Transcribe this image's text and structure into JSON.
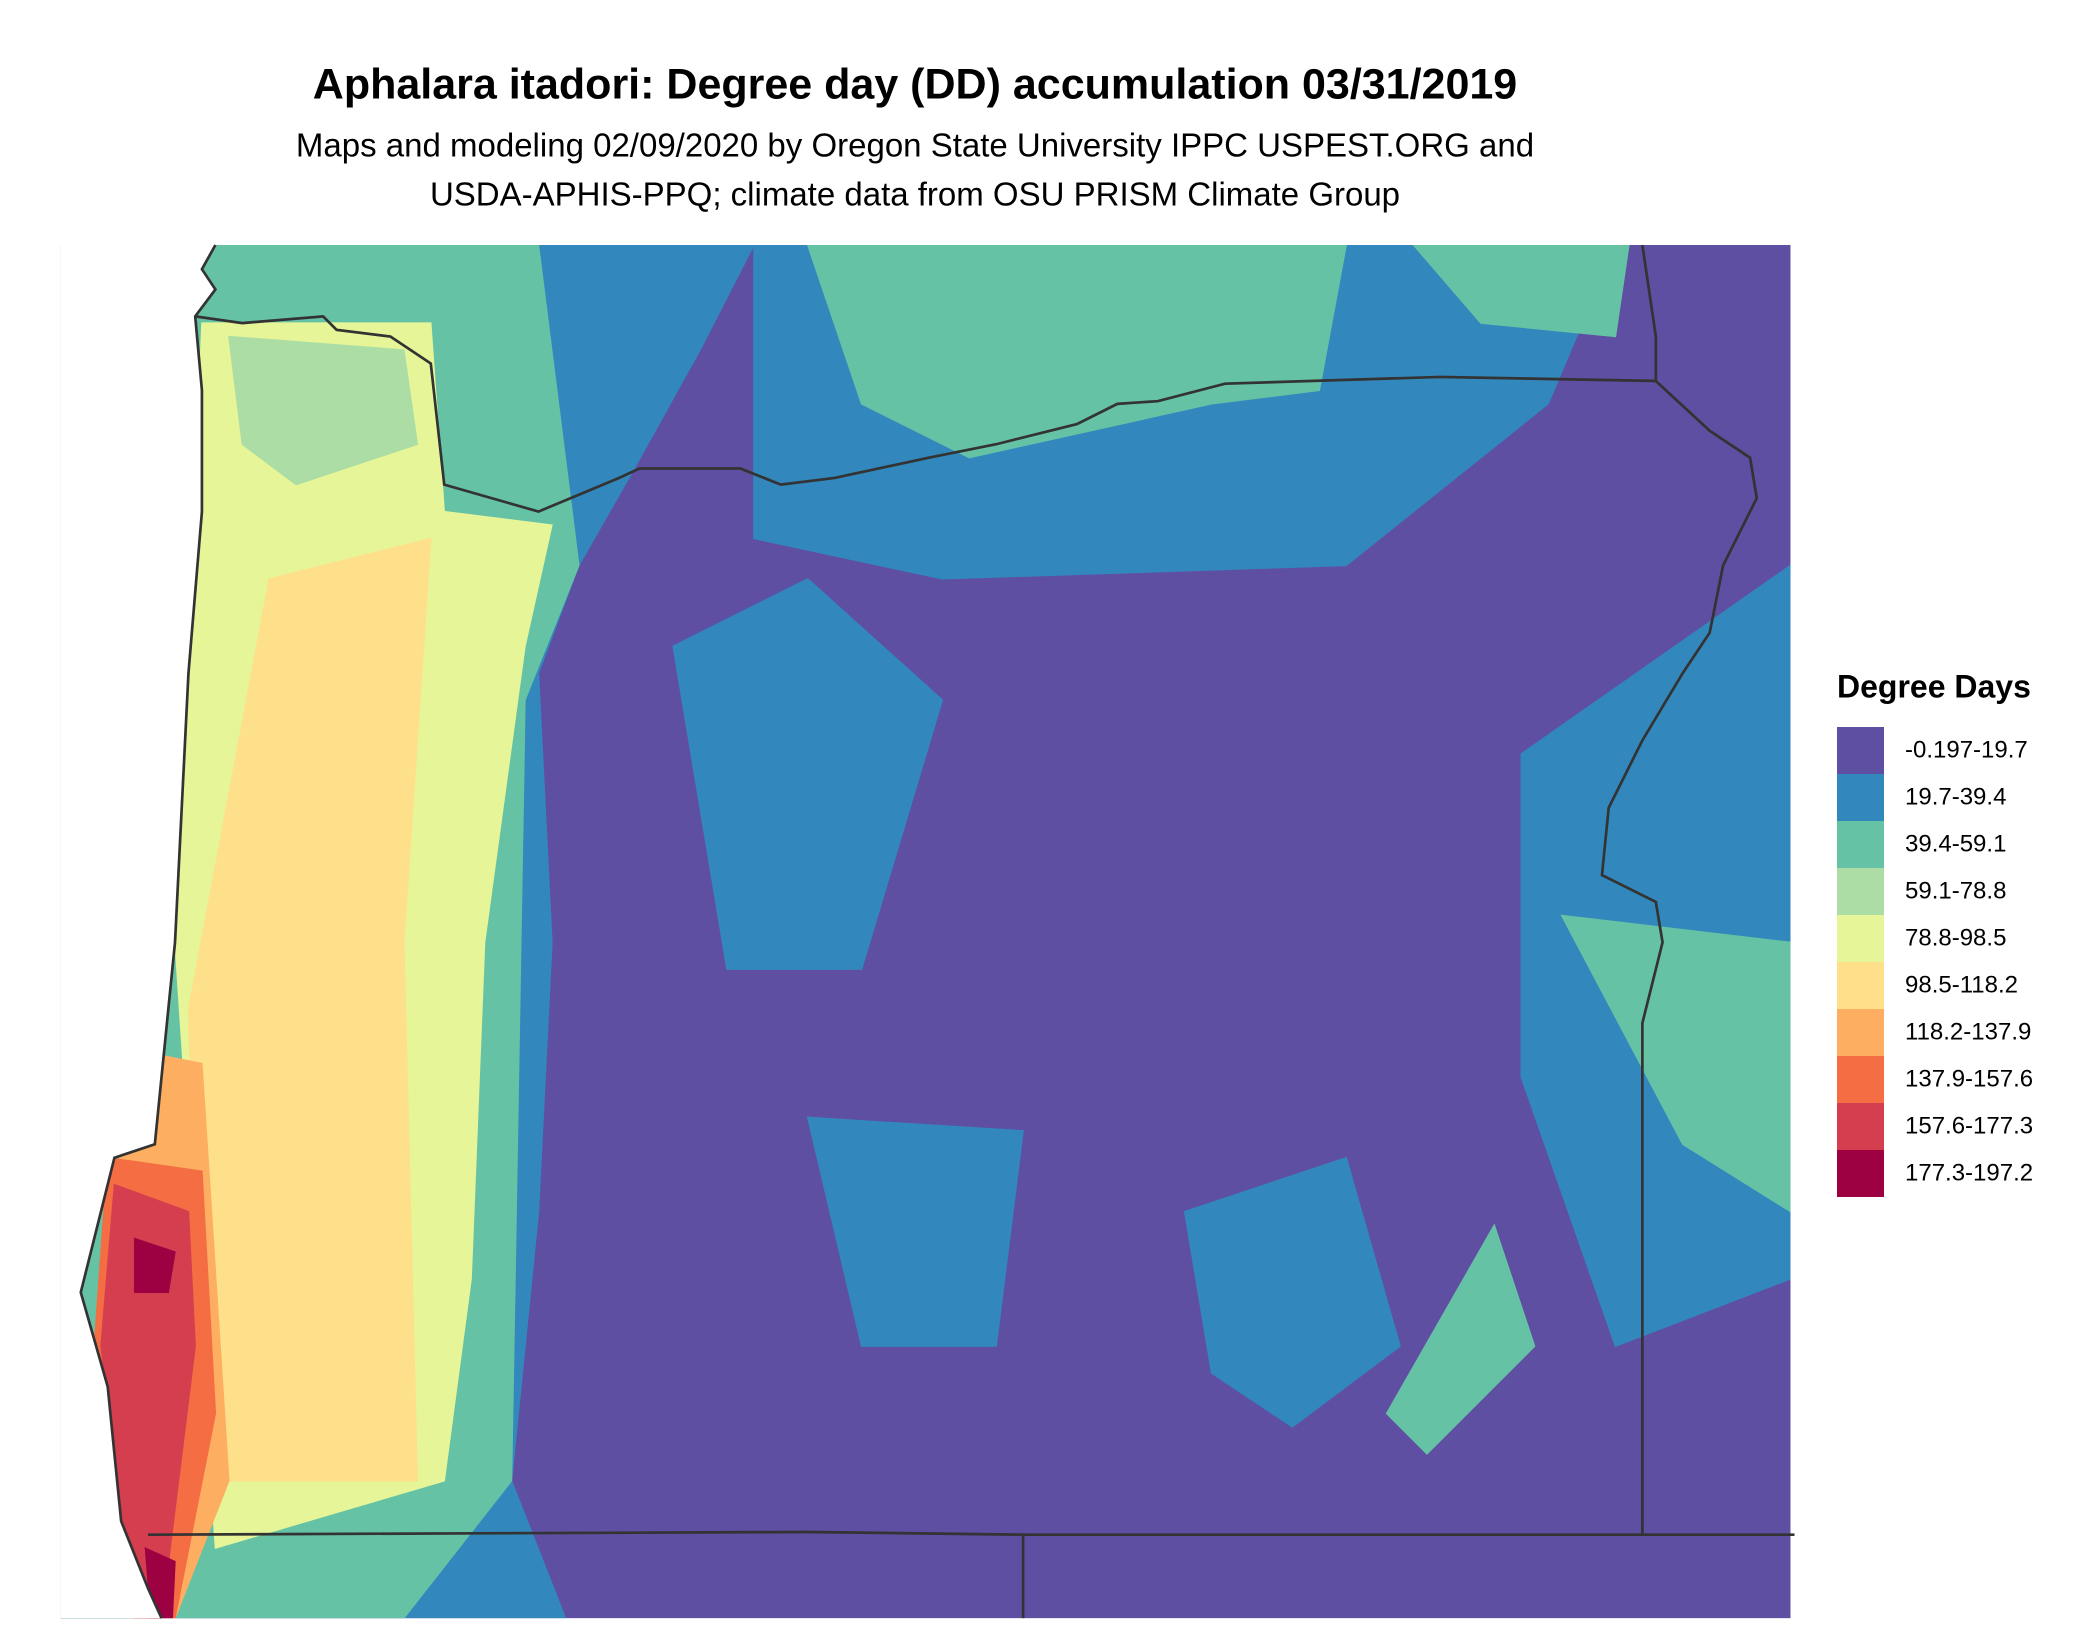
{
  "header": {
    "title": "Aphalara itadori: Degree day (DD) accumulation 03/31/2019",
    "subtitle_lines": [
      "Maps and modeling 02/09/2020 by Oregon State University IPPC USPEST.ORG and",
      "USDA-APHIS-PPQ; climate data from OSU PRISM Climate Group"
    ]
  },
  "legend": {
    "title": "Degree Days",
    "items": [
      {
        "label": "-0.197-19.7",
        "color": "#5E4FA2"
      },
      {
        "label": "19.7-39.4",
        "color": "#3288BD"
      },
      {
        "label": "39.4-59.1",
        "color": "#66C2A5"
      },
      {
        "label": "59.1-78.8",
        "color": "#ABDDA4"
      },
      {
        "label": "78.8-98.5",
        "color": "#E6F598"
      },
      {
        "label": "98.5-118.2",
        "color": "#FEE08B"
      },
      {
        "label": "118.2-137.9",
        "color": "#FDAE61"
      },
      {
        "label": "137.9-157.6",
        "color": "#F46D43"
      },
      {
        "label": "157.6-177.3",
        "color": "#D53E4F"
      },
      {
        "label": "177.3-197.2",
        "color": "#9E0142"
      }
    ]
  }
}
